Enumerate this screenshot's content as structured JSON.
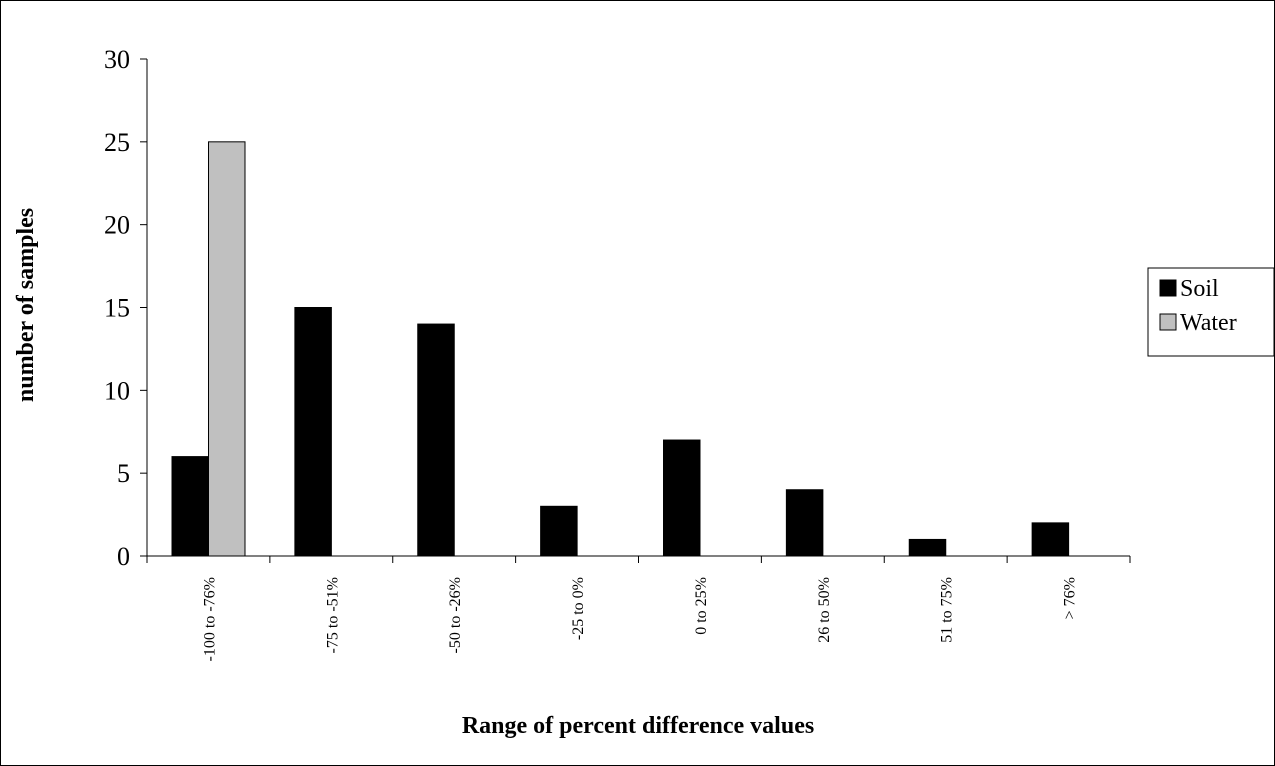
{
  "chart_data": {
    "type": "bar",
    "x_label": "Range of percent difference values",
    "y_label": "number of samples",
    "categories": [
      "-100 to -76%",
      "-75 to -51%",
      "-50 to -26%",
      "-25 to 0%",
      "0 to 25%",
      "26 to 50%",
      "51 to 75%",
      "> 76%"
    ],
    "series": [
      {
        "name": "Soil",
        "color": "#000000",
        "values": [
          6,
          15,
          14,
          3,
          7,
          4,
          1,
          2
        ]
      },
      {
        "name": "Water",
        "color": "#c0c0c0",
        "values": [
          25,
          0,
          0,
          0,
          0,
          0,
          0,
          0
        ]
      }
    ],
    "ylim": [
      0,
      30
    ],
    "yticks": [
      0,
      5,
      10,
      15,
      20,
      25,
      30
    ],
    "grid": false,
    "legend": "right"
  }
}
